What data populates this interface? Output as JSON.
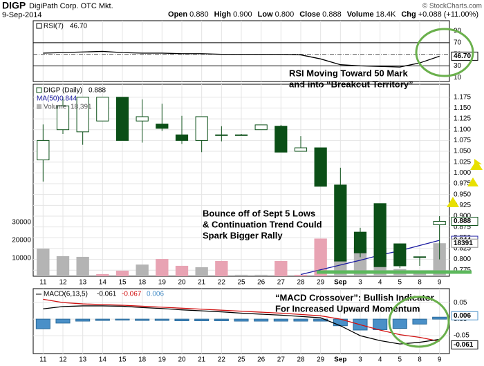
{
  "header": {
    "symbol": "DIGP",
    "name": "DigiPath Corp. OTC Mkt.",
    "date": "9-Sep-2014",
    "source": "© StockCharts.com",
    "stats": [
      {
        "label": "Open",
        "value": "0.880"
      },
      {
        "label": "High",
        "value": "0.900"
      },
      {
        "label": "Low",
        "value": "0.800"
      },
      {
        "label": "Close",
        "value": "0.888"
      },
      {
        "label": "Volume",
        "value": "18.4K"
      },
      {
        "label": "Chg",
        "value": "+0.088 (+11.00%)"
      }
    ]
  },
  "chart_data": [
    {
      "type": "line",
      "categories": [
        "11",
        "12",
        "13",
        "14",
        "15",
        "18",
        "19",
        "20",
        "21",
        "22",
        "25",
        "26",
        "27",
        "28",
        "29",
        "Sep",
        "3",
        "4",
        "5",
        "8",
        "9"
      ],
      "series": [
        {
          "name": "RSI(7)",
          "color": "#000000",
          "values": [
            52,
            53,
            54,
            55,
            53,
            52,
            52,
            51,
            51,
            50,
            50,
            50,
            50,
            49,
            42,
            32,
            30,
            29,
            28,
            35,
            46.7
          ],
          "value_label": "46.70"
        }
      ],
      "ylim": [
        3,
        108
      ],
      "yticks": [
        90,
        70,
        50,
        30,
        10
      ],
      "bands": [
        70,
        30
      ],
      "midline": 50,
      "annotation": [
        "RSI Moving Toward 50 Mark",
        "and into “Breakout Territory”"
      ]
    },
    {
      "type": "candlestick",
      "categories": [
        "11",
        "12",
        "13",
        "14",
        "15",
        "18",
        "19",
        "20",
        "21",
        "22",
        "25",
        "26",
        "27",
        "28",
        "29",
        "Sep",
        "3",
        "4",
        "5",
        "8",
        "9"
      ],
      "name": "DIGP (Daily)",
      "color": "#0b4f17",
      "open": [
        1.03,
        1.1,
        1.095,
        1.12,
        1.175,
        1.12,
        1.113,
        1.088,
        1.075,
        1.088,
        1.088,
        1.1,
        1.108,
        1.05,
        1.058,
        0.972,
        0.863,
        0.929,
        0.836,
        0.805,
        0.88
      ],
      "high": [
        1.112,
        1.175,
        1.175,
        1.175,
        1.175,
        1.17,
        1.16,
        1.132,
        1.13,
        1.108,
        1.09,
        1.111,
        1.111,
        1.085,
        1.058,
        1.012,
        0.873,
        0.929,
        0.836,
        0.806,
        0.9
      ],
      "low": [
        0.98,
        1.09,
        1.065,
        1.12,
        1.075,
        1.07,
        1.097,
        1.067,
        1.048,
        1.073,
        1.086,
        1.1,
        1.048,
        1.05,
        0.969,
        0.796,
        0.805,
        0.783,
        0.78,
        0.785,
        0.8
      ],
      "close": [
        1.075,
        1.155,
        1.175,
        1.175,
        1.075,
        1.13,
        1.103,
        1.075,
        1.13,
        1.088,
        1.088,
        1.111,
        1.048,
        1.058,
        0.969,
        0.796,
        0.815,
        0.783,
        0.785,
        0.806,
        0.888
      ],
      "overlay": {
        "name": "MA(50)",
        "color": "#1a1aa0",
        "values": [
          null,
          null,
          null,
          null,
          null,
          null,
          null,
          null,
          null,
          null,
          null,
          null,
          null,
          0.765,
          0.776,
          0.787,
          0.798,
          0.81,
          0.82,
          0.832,
          0.844
        ]
      },
      "volume": {
        "name": "Volume",
        "values": [
          15400,
          11200,
          10800,
          1200,
          3100,
          6500,
          9600,
          5800,
          5000,
          8500,
          800,
          800,
          8500,
          800,
          21000,
          9200,
          16500,
          16000,
          4000,
          1500,
          18391
        ],
        "colors": [
          "#b4b4b4",
          "#b4b4b4",
          "#b4b4b4",
          "#e8a3b3",
          "#e8a3b3",
          "#b4b4b4",
          "#e8a3b3",
          "#e8a3b3",
          "#b4b4b4",
          "#e8a3b3",
          "#b4b4b4",
          "#b4b4b4",
          "#e8a3b3",
          "#e8a3b3",
          "#e8a3b3",
          "#b4b4b4",
          "#b4b4b4",
          "#b4b4b4",
          "#b4b4b4",
          "#b4b4b4",
          "#b4b4b4"
        ],
        "legend_label": "18,391",
        "ylim": [
          0,
          107000
        ],
        "yticks": [
          10000,
          20000,
          30000
        ]
      },
      "ylim": [
        0.761,
        1.205
      ],
      "yticks": [
        1.175,
        {
          "value": 1.15,
          "label": "1.150"
        },
        1.125,
        {
          "value": 1.1,
          "label": "1.100"
        },
        1.075,
        {
          "value": 1.05,
          "label": "1.050"
        },
        1.025,
        {
          "value": 1,
          "label": "1.000"
        },
        0.975,
        {
          "value": 0.95,
          "label": "0.950"
        },
        0.925,
        {
          "value": 0.9,
          "label": "0.900"
        },
        0.875,
        {
          "value": 0.85,
          "label": "0.850"
        },
        0.825,
        {
          "value": 0.8,
          "label": "0.800"
        },
        0.775
      ],
      "grid": true,
      "annotation": [
        "Bounce off of Sept 5 Lows",
        "& Continuation Trend Could",
        "Spark Bigger Rally"
      ]
    },
    {
      "type": "macd",
      "categories": [
        "11",
        "12",
        "13",
        "14",
        "15",
        "18",
        "19",
        "20",
        "21",
        "22",
        "25",
        "26",
        "27",
        "28",
        "29",
        "Sep",
        "3",
        "4",
        "5",
        "8",
        "9"
      ],
      "name": "MACD(6,13,5)",
      "macd": {
        "color": "#000000",
        "values": [
          0.031,
          0.038,
          0.04,
          0.04,
          0.039,
          0.035,
          0.032,
          0.028,
          0.025,
          0.022,
          0.018,
          0.015,
          0.012,
          0.008,
          0.004,
          -0.02,
          -0.05,
          -0.065,
          -0.075,
          -0.07,
          -0.061
        ]
      },
      "signal": {
        "color": "#d01010",
        "values": [
          0.06,
          0.05,
          0.046,
          0.044,
          0.042,
          0.039,
          0.036,
          0.033,
          0.03,
          0.027,
          0.024,
          0.021,
          0.018,
          0.014,
          0.01,
          0.0,
          -0.017,
          -0.033,
          -0.047,
          -0.055,
          -0.067
        ]
      },
      "histogram": {
        "color": "#4a90c8",
        "values": [
          -0.029,
          -0.012,
          -0.006,
          -0.004,
          -0.003,
          -0.004,
          -0.004,
          -0.005,
          -0.005,
          -0.005,
          -0.006,
          -0.006,
          -0.006,
          -0.006,
          -0.006,
          -0.02,
          -0.033,
          -0.032,
          -0.028,
          -0.015,
          0.006
        ]
      },
      "ylim": [
        -0.104,
        0.092
      ],
      "yticks": [
        0.05,
        {
          "value": 0,
          "label": "0.00"
        },
        -0.05
      ],
      "grid": true,
      "annotation": [
        "“MACD Crossover”: Bullish Indicator",
        "For Increased Upward Momentum"
      ]
    }
  ]
}
